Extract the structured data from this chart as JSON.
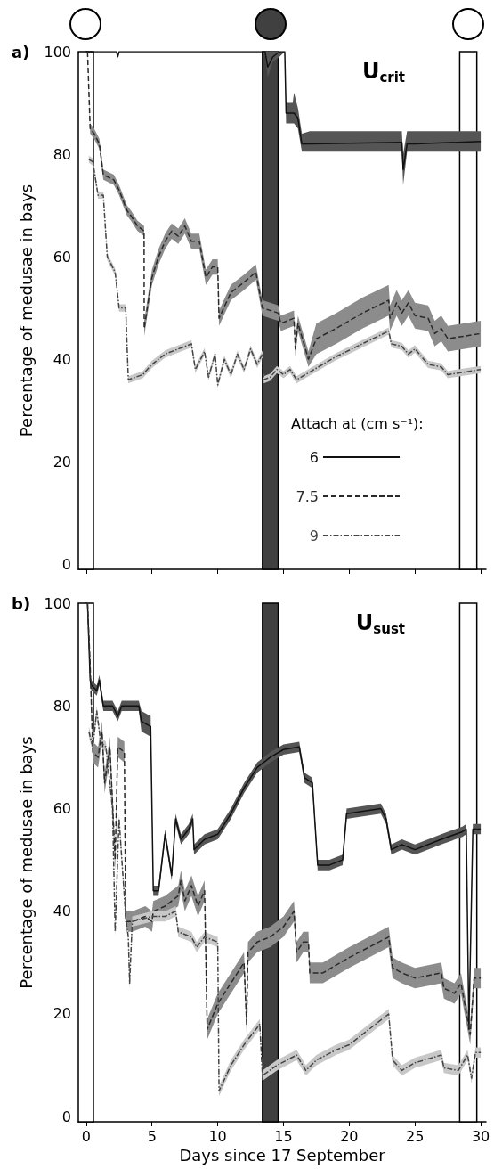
{
  "chart_data": [
    {
      "type": "line",
      "title": "a)",
      "ylabel": "Percentage of medusae in bays",
      "legend_title": "Attach at (cm s⁻¹):",
      "annotations": [
        "U$_{crit}$"
      ],
      "xlim": [
        -0.6,
        30.4
      ],
      "xticks": [
        0,
        5,
        10,
        15,
        20,
        25,
        30
      ],
      "ylim": [
        -1,
        100
      ],
      "yticks": [
        0,
        20,
        40,
        60,
        80,
        100
      ],
      "tick_labels": "y",
      "grid": false,
      "legend": "bottom right",
      "marker": "none",
      "bands": [
        {
          "axis": "x",
          "from": -0.6,
          "to": 0.55,
          "color": "#ffffff"
        },
        {
          "axis": "x",
          "from": 13.4,
          "to": 14.6,
          "color": "#404040"
        },
        {
          "axis": "x",
          "from": 28.4,
          "to": 29.7,
          "color": "#ffffff"
        }
      ],
      "series": [
        {
          "name": "6",
          "color": "#111111",
          "line_style": "solid",
          "x": [
            0,
            2.3,
            2.4,
            2.5,
            13.4,
            13.6,
            13.8,
            14.2,
            14.7,
            15.1,
            15.2,
            15.7,
            15.8,
            16.1,
            16.4,
            17,
            24,
            24.1,
            24.4,
            25,
            30
          ],
          "values": [
            100,
            100,
            99,
            100,
            100,
            100,
            97,
            99,
            100,
            100,
            88,
            88,
            88,
            87,
            82,
            82,
            82.3,
            77,
            82,
            82,
            82.5
          ],
          "lower": [
            100,
            100,
            99,
            100,
            100,
            99,
            95,
            98,
            99,
            100,
            86,
            86,
            86,
            85,
            80.5,
            80.5,
            80.5,
            74,
            80.5,
            80.5,
            80.5
          ],
          "upper": [
            100,
            100,
            99,
            100,
            100,
            100,
            100,
            100,
            100,
            100,
            90,
            90,
            92,
            89,
            84,
            84.5,
            84.5,
            80,
            84.5,
            84.5,
            84.5
          ]
        },
        {
          "name": "7.5",
          "color": "#2a2a2a",
          "line_style": "dashed",
          "x": [
            0.1,
            0.3,
            0.6,
            1.0,
            1.3,
            2.1,
            2.5,
            3.1,
            3.4,
            3.9,
            4.4,
            4.41,
            5.0,
            5.5,
            6.0,
            6.5,
            7.0,
            7.5,
            8.0,
            8.6,
            9.1,
            9.6,
            10.0,
            10.1,
            11,
            12,
            12.9,
            13.4,
            14,
            14.6,
            14.8,
            15.8,
            15.9,
            16.1,
            16.9,
            17.5,
            19,
            21,
            23,
            23.1,
            23.6,
            24,
            24.5,
            25,
            26,
            26.5,
            27,
            27.5,
            30
          ],
          "values": [
            100,
            85,
            84,
            82,
            76,
            75,
            73,
            69,
            68,
            66,
            65,
            46,
            56,
            60,
            63,
            65,
            64,
            66,
            63,
            63,
            56,
            58,
            58,
            48,
            53,
            55,
            57,
            50,
            49.5,
            49,
            47,
            48,
            42,
            47,
            40,
            44,
            46,
            49,
            51.5,
            48,
            51,
            49,
            51,
            48.5,
            48,
            45,
            46,
            44,
            45
          ],
          "lower": [
            99,
            84,
            83,
            81,
            75,
            74,
            72,
            68,
            67,
            65,
            64,
            44.5,
            54.5,
            58.5,
            61.5,
            63.5,
            62.5,
            64.5,
            61.5,
            61.5,
            54.5,
            56.5,
            56.5,
            46.5,
            51.5,
            53.5,
            55.5,
            48.5,
            48,
            47.5,
            45.5,
            46.5,
            40.5,
            45.5,
            38.5,
            41,
            43,
            46,
            48.5,
            45.5,
            48.5,
            46.5,
            48.5,
            46,
            45.5,
            42.5,
            43.5,
            41.5,
            42.5
          ],
          "upper": [
            100,
            86,
            85,
            83,
            77,
            76,
            74,
            70,
            69,
            67,
            66,
            47.5,
            57.5,
            61.5,
            64.5,
            66.5,
            65.5,
            67.5,
            64.5,
            64.5,
            57.5,
            59.5,
            59.5,
            49.5,
            54.5,
            56.5,
            58.5,
            51.5,
            51,
            50.5,
            48.5,
            49.5,
            43.5,
            48.5,
            41.5,
            47,
            49,
            52,
            54.5,
            50.5,
            53.5,
            51.5,
            53.5,
            51,
            50.5,
            47.5,
            48.5,
            46.5,
            47.5
          ]
        },
        {
          "name": "9",
          "color": "#444444",
          "line_style": "dotted",
          "x": [
            0.2,
            0.5,
            0.9,
            1.3,
            1.6,
            2.2,
            2.5,
            3.0,
            3.2,
            4.3,
            5,
            6,
            7,
            8,
            8.3,
            9,
            9.3,
            9.8,
            10,
            10.5,
            11,
            11.5,
            12,
            12.5,
            13,
            13.4,
            13.5,
            14,
            14.5,
            15,
            15.5,
            16,
            17,
            19,
            21,
            23,
            23.2,
            24,
            24.5,
            25,
            26,
            27,
            27.5,
            30
          ],
          "values": [
            79,
            78.5,
            72,
            72,
            60,
            57,
            50,
            50,
            36,
            37,
            39,
            41,
            42,
            43,
            38,
            41.5,
            36.5,
            41,
            35,
            40,
            37,
            41,
            38,
            42,
            39,
            41,
            36,
            36.5,
            38,
            37,
            38,
            36,
            37.5,
            40.5,
            43,
            45.5,
            43,
            42.5,
            41,
            42,
            39,
            38.5,
            37,
            38
          ],
          "lower": [
            78.3,
            77.8,
            71.3,
            71.3,
            59.3,
            56.3,
            49.3,
            49.3,
            35.3,
            36.3,
            38.3,
            40.3,
            41.3,
            42.3,
            37.3,
            40.8,
            35.8,
            40.3,
            34.3,
            39.3,
            36.3,
            40.3,
            37.3,
            41.3,
            38.3,
            40.3,
            35.3,
            35.8,
            37.3,
            36.3,
            37.3,
            35.3,
            36.8,
            39.8,
            42.3,
            44.8,
            42.3,
            41.8,
            40.3,
            41.3,
            38.3,
            37.8,
            36.3,
            37.3
          ],
          "upper": [
            79.7,
            79.2,
            72.7,
            72.7,
            60.7,
            57.7,
            50.7,
            50.7,
            36.7,
            37.7,
            39.7,
            41.7,
            42.7,
            43.7,
            38.7,
            42.2,
            37.2,
            41.7,
            35.7,
            40.7,
            37.7,
            41.7,
            38.7,
            42.7,
            39.7,
            41.7,
            36.7,
            37.2,
            38.7,
            37.7,
            38.7,
            36.7,
            38.2,
            41.2,
            43.7,
            46.2,
            43.7,
            43.2,
            41.7,
            42.7,
            39.7,
            39.2,
            37.7,
            38.7
          ]
        }
      ]
    },
    {
      "type": "line",
      "title": "b)",
      "xlabel": "Days since 17 September",
      "ylabel": "Percentage of medusae in bays",
      "annotations": [
        "U$_{sust}$"
      ],
      "xlim": [
        -0.6,
        30.4
      ],
      "xticks": [
        0,
        5,
        10,
        15,
        20,
        25,
        30
      ],
      "ylim": [
        -1,
        100
      ],
      "yticks": [
        0,
        20,
        40,
        60,
        80,
        100
      ],
      "grid": false,
      "legend": false,
      "marker": "none",
      "bands": [
        {
          "axis": "x",
          "from": -0.6,
          "to": 0.55,
          "color": "#ffffff"
        },
        {
          "axis": "x",
          "from": 13.4,
          "to": 14.6,
          "color": "#404040"
        },
        {
          "axis": "x",
          "from": 28.4,
          "to": 29.7,
          "color": "#ffffff"
        }
      ],
      "series": [
        {
          "color": "#111111",
          "line_style": "solid",
          "x": [
            0.1,
            0.3,
            0.4,
            0.8,
            1.0,
            1.3,
            2.0,
            2.4,
            2.7,
            4.0,
            4.2,
            4.9,
            5.1,
            5.5,
            6,
            6.5,
            6.8,
            7.2,
            7.8,
            8.1,
            8.2,
            9,
            10,
            11,
            12,
            13,
            14,
            15,
            16.2,
            16.6,
            17.2,
            17.6,
            18.5,
            19.5,
            19.8,
            22.4,
            22.8,
            23.2,
            24,
            25,
            27,
            28.6,
            28.9,
            29.1,
            29.4,
            30
          ],
          "values": [
            100,
            85,
            84,
            83,
            85,
            80,
            80,
            78,
            80,
            80,
            77,
            76,
            44,
            44,
            55,
            47,
            58,
            54,
            56,
            58,
            52,
            54,
            55,
            59,
            64,
            68,
            70,
            71.5,
            72,
            66,
            65,
            49,
            49,
            50,
            59,
            60,
            58,
            52,
            53,
            52,
            54,
            55.5,
            56,
            17,
            56,
            56
          ],
          "lower": [
            99,
            84,
            83,
            82,
            84,
            79,
            79,
            77,
            79,
            79,
            75,
            74,
            43,
            43,
            54,
            46,
            57,
            53,
            55,
            57,
            51,
            53,
            54,
            58,
            63,
            67,
            69,
            70.5,
            71,
            65,
            64,
            48,
            48,
            49,
            58,
            59,
            57,
            51,
            52,
            51,
            53,
            54.5,
            55,
            16,
            55,
            55
          ],
          "upper": [
            100,
            86,
            85,
            84,
            86,
            81,
            81,
            79,
            81,
            81,
            79,
            78,
            45,
            45,
            56,
            48,
            59,
            55,
            57,
            59,
            53,
            55,
            56,
            60,
            65,
            69,
            71,
            72.5,
            73,
            67,
            66,
            50,
            50,
            51,
            60,
            61,
            59,
            53,
            54,
            53,
            55,
            56.5,
            57,
            18,
            57,
            57
          ]
        },
        {
          "color": "#2a2a2a",
          "line_style": "dashed",
          "x": [
            0.1,
            0.3,
            0.5,
            0.9,
            1.2,
            1.4,
            1.8,
            2.2,
            2.4,
            2.9,
            3.0,
            3.5,
            4.5,
            5.0,
            5.1,
            6,
            7,
            7.2,
            7.5,
            8,
            8.5,
            9,
            9.2,
            10,
            11,
            12,
            12.2,
            12.3,
            13,
            14,
            15,
            15.8,
            16,
            16.5,
            16.9,
            17,
            18,
            20,
            23,
            23.3,
            24,
            25,
            27,
            27.2,
            28,
            28.5,
            29.2,
            29.5,
            30
          ],
          "values": [
            100,
            88,
            71,
            70,
            75,
            65,
            72,
            50,
            72,
            71,
            38,
            38,
            39,
            38,
            40,
            41,
            43,
            46,
            42,
            45,
            41,
            44,
            17,
            22,
            26,
            30,
            18,
            32,
            34,
            35,
            37,
            40,
            32,
            34,
            34,
            28,
            28,
            31,
            35,
            29,
            28,
            27,
            28,
            25,
            24,
            26,
            16,
            27,
            27
          ],
          "lower": [
            98,
            86,
            69,
            68,
            73,
            63,
            70,
            48,
            70,
            69,
            36,
            36,
            37,
            36,
            38,
            39,
            41,
            44,
            40,
            43,
            39,
            42,
            15,
            20,
            24,
            28,
            16,
            30,
            32,
            33,
            35,
            38,
            30,
            32,
            32,
            26,
            26,
            29,
            33,
            27,
            26,
            25,
            26,
            23,
            22,
            24,
            14,
            25,
            25
          ],
          "upper": [
            100,
            90,
            73,
            72,
            77,
            67,
            74,
            52,
            74,
            73,
            40,
            40,
            41,
            40,
            42,
            43,
            45,
            48,
            44,
            47,
            43,
            46,
            19,
            24,
            28,
            32,
            20,
            34,
            36,
            37,
            39,
            42,
            34,
            36,
            36,
            30,
            30,
            33,
            37,
            31,
            30,
            29,
            30,
            27,
            26,
            28,
            18,
            29,
            29
          ]
        },
        {
          "color": "#444444",
          "line_style": "dotted",
          "x": [
            0.2,
            0.5,
            0.8,
            1.1,
            1.5,
            2.0,
            2.2,
            2.5,
            3.0,
            3.2,
            3.3,
            3.5,
            5,
            6,
            6.8,
            7,
            8,
            8.4,
            9,
            10,
            10.1,
            11,
            12,
            13.2,
            13.4,
            14.5,
            16,
            16.7,
            17.5,
            19,
            20,
            23,
            23.3,
            24,
            25,
            27,
            27.2,
            28.3,
            29,
            29.3,
            29.6,
            30
          ],
          "values": [
            75,
            72,
            79,
            73,
            72,
            60,
            36,
            58,
            39,
            35,
            26,
            38,
            39,
            39,
            40,
            36,
            35,
            33,
            35,
            34,
            5,
            10,
            14,
            18,
            8,
            10,
            12,
            9,
            11,
            13,
            14,
            20,
            11,
            9,
            10.5,
            12,
            9.5,
            9,
            12,
            7.5,
            12.5,
            12.5
          ],
          "lower": [
            74,
            71,
            78,
            72,
            71,
            59,
            35,
            57,
            38,
            34,
            25,
            37,
            38,
            38,
            39,
            35,
            34,
            32,
            34,
            33,
            4,
            9,
            13,
            17,
            7,
            9,
            11,
            8,
            10,
            12,
            13,
            19,
            10,
            8,
            9.5,
            11,
            8.5,
            8,
            11,
            6.5,
            11.5,
            11.5
          ],
          "upper": [
            76,
            73,
            80,
            74,
            73,
            61,
            37,
            59,
            40,
            36,
            27,
            39,
            40,
            40,
            41,
            37,
            36,
            34,
            36,
            35,
            6,
            11,
            15,
            19,
            9,
            11,
            13,
            10,
            12,
            14,
            15,
            21,
            12,
            10,
            11.5,
            13,
            10.5,
            10,
            13,
            8.5,
            13.5,
            13.5
          ]
        }
      ]
    }
  ]
}
